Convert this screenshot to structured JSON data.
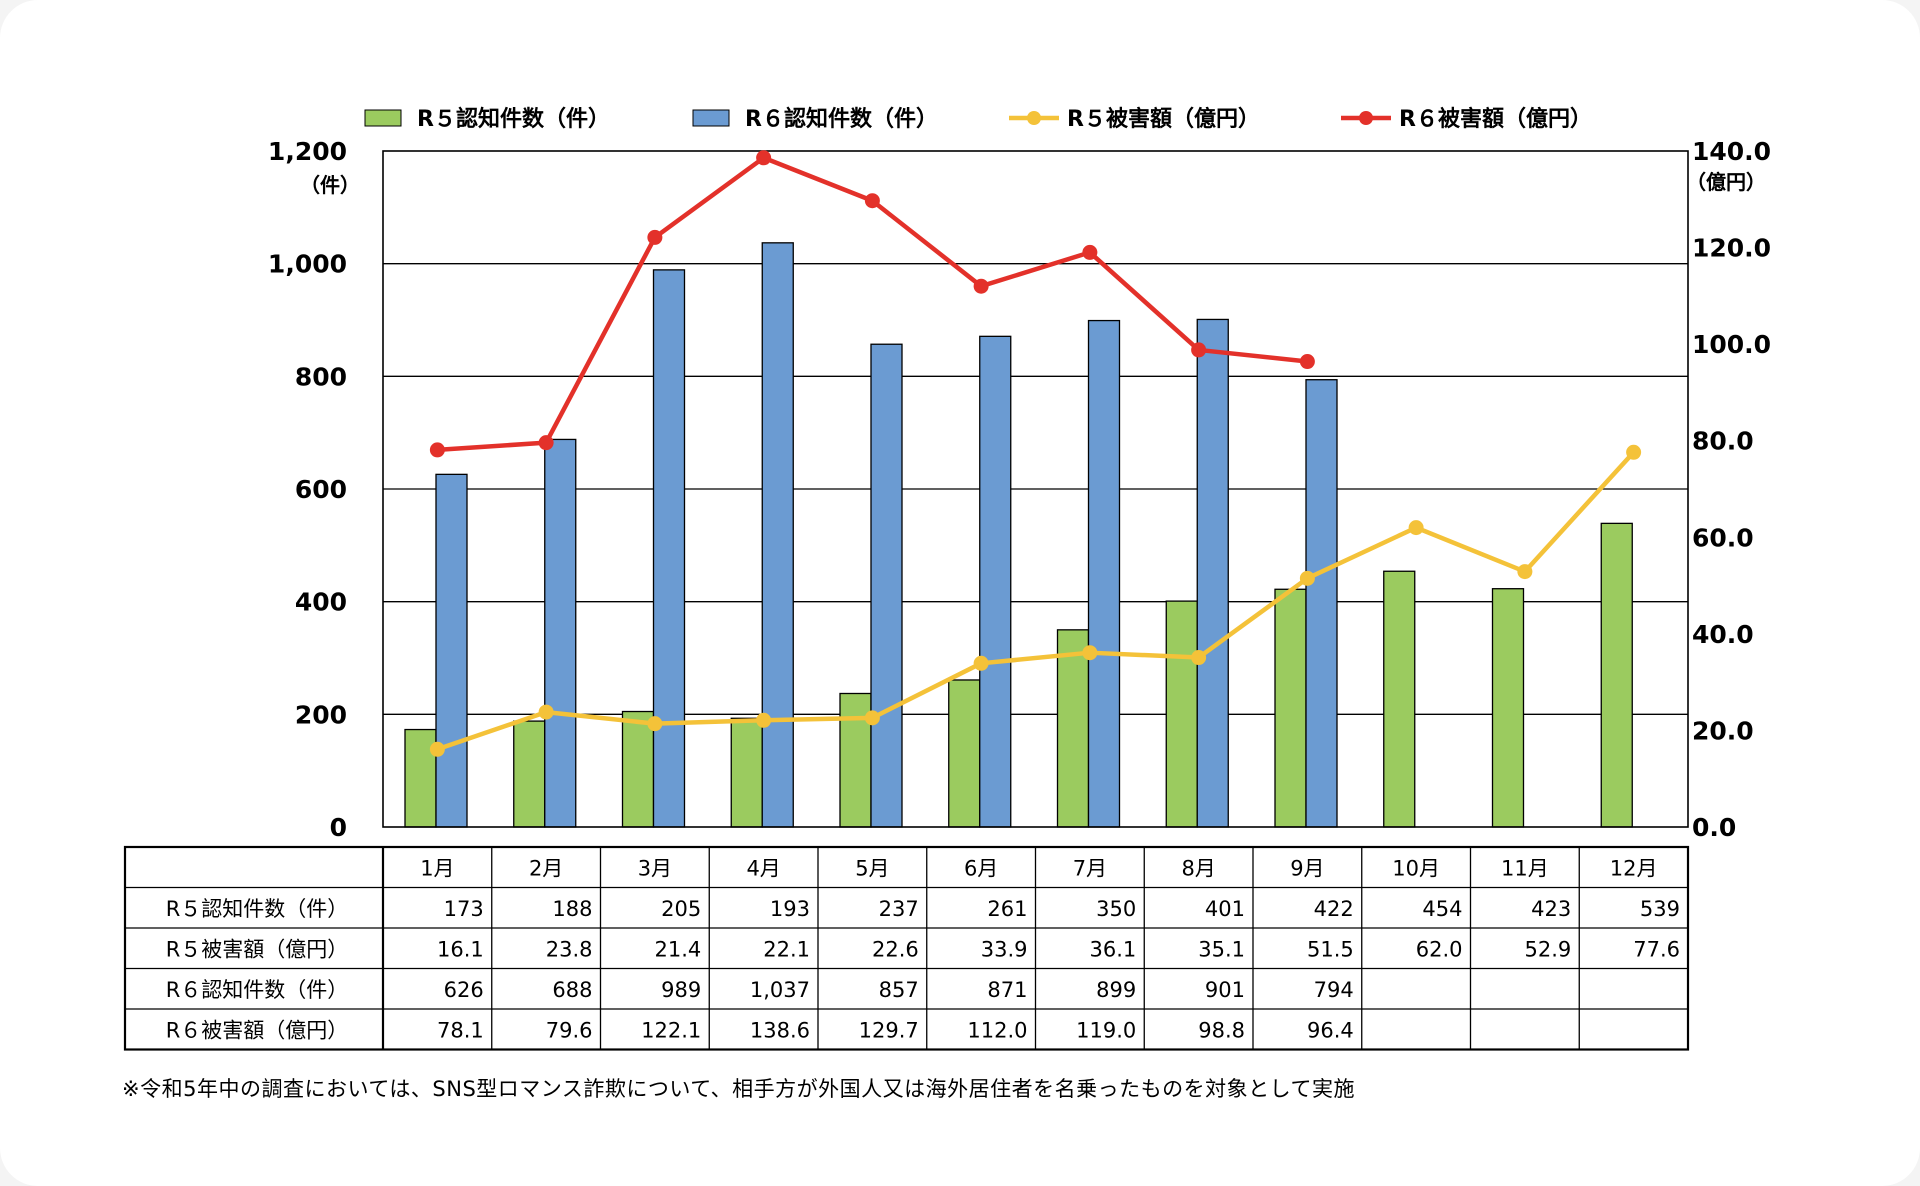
{
  "chart_data": {
    "type": "bar",
    "categories": [
      "1月",
      "2月",
      "3月",
      "4月",
      "5月",
      "6月",
      "7月",
      "8月",
      "9月",
      "10月",
      "11月",
      "12月"
    ],
    "series": [
      {
        "name": "R５認知件数（件）",
        "type": "bar",
        "axis": "left",
        "color": "#9bcb5f",
        "values": [
          173,
          188,
          205,
          193,
          237,
          261,
          350,
          401,
          422,
          454,
          423,
          539
        ]
      },
      {
        "name": "R６認知件数（件）",
        "type": "bar",
        "axis": "left",
        "color": "#6b9bd2",
        "values": [
          626,
          688,
          989,
          1037,
          857,
          871,
          899,
          901,
          794,
          null,
          null,
          null
        ]
      },
      {
        "name": "R５被害額（億円）",
        "type": "line",
        "axis": "right",
        "color": "#f4c239",
        "values": [
          16.1,
          23.8,
          21.4,
          22.1,
          22.6,
          33.9,
          36.1,
          35.1,
          51.5,
          62.0,
          52.9,
          77.6
        ]
      },
      {
        "name": "R６被害額（億円）",
        "type": "line",
        "axis": "right",
        "color": "#e3312a",
        "values": [
          78.1,
          79.6,
          122.1,
          138.6,
          129.7,
          112.0,
          119.0,
          98.8,
          96.4,
          null,
          null,
          null
        ]
      }
    ],
    "y_left": {
      "ylim": [
        0,
        1200
      ],
      "ticks": [
        "0",
        "200",
        "400",
        "600",
        "800",
        "1,000",
        "1,200"
      ],
      "unit": "（件）"
    },
    "y_right": {
      "ylim": [
        0,
        140
      ],
      "ticks": [
        "0.0",
        "20.0",
        "40.0",
        "60.0",
        "80.0",
        "100.0",
        "120.0",
        "140.0"
      ],
      "unit": "（億円）"
    },
    "grid": true,
    "legend": "top",
    "table": {
      "headers": [
        "1月",
        "2月",
        "3月",
        "4月",
        "5月",
        "6月",
        "7月",
        "8月",
        "9月",
        "10月",
        "11月",
        "12月"
      ],
      "rows": [
        {
          "label": "R５認知件数（件）",
          "cells": [
            "173",
            "188",
            "205",
            "193",
            "237",
            "261",
            "350",
            "401",
            "422",
            "454",
            "423",
            "539"
          ]
        },
        {
          "label": "R５被害額（億円）",
          "cells": [
            "16.1",
            "23.8",
            "21.4",
            "22.1",
            "22.6",
            "33.9",
            "36.1",
            "35.1",
            "51.5",
            "62.0",
            "52.9",
            "77.6"
          ]
        },
        {
          "label": "R６認知件数（件）",
          "cells": [
            "626",
            "688",
            "989",
            "1,037",
            "857",
            "871",
            "899",
            "901",
            "794",
            "",
            "",
            ""
          ]
        },
        {
          "label": "R６被害額（億円）",
          "cells": [
            "78.1",
            "79.6",
            "122.1",
            "138.6",
            "129.7",
            "112.0",
            "119.0",
            "98.8",
            "96.4",
            "",
            "",
            ""
          ]
        }
      ]
    }
  },
  "note": "※令和5年中の調査においては、SNS型ロマンス詐欺について、相手方が外国人又は海外居住者を名乗ったものを対象として実施"
}
